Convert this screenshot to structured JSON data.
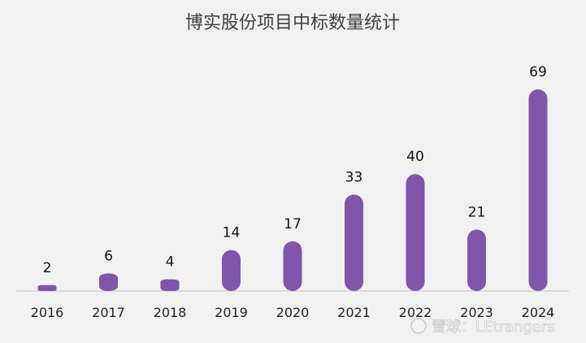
{
  "chart_data": {
    "type": "bar",
    "title": "博实股份项目中标数量统计",
    "categories": [
      "2016",
      "2017",
      "2018",
      "2019",
      "2020",
      "2021",
      "2022",
      "2023",
      "2024"
    ],
    "values": [
      2,
      6,
      4,
      14,
      17,
      33,
      40,
      21,
      69
    ],
    "xlabel": "",
    "ylabel": "",
    "ylim": [
      0,
      69
    ],
    "grid": false,
    "legend": "none",
    "bar_shape": "rounded-capsule",
    "bar_color": "#7f56aa",
    "data_labels": true
  },
  "watermark": {
    "text": "雪球：LEtrangers"
  }
}
